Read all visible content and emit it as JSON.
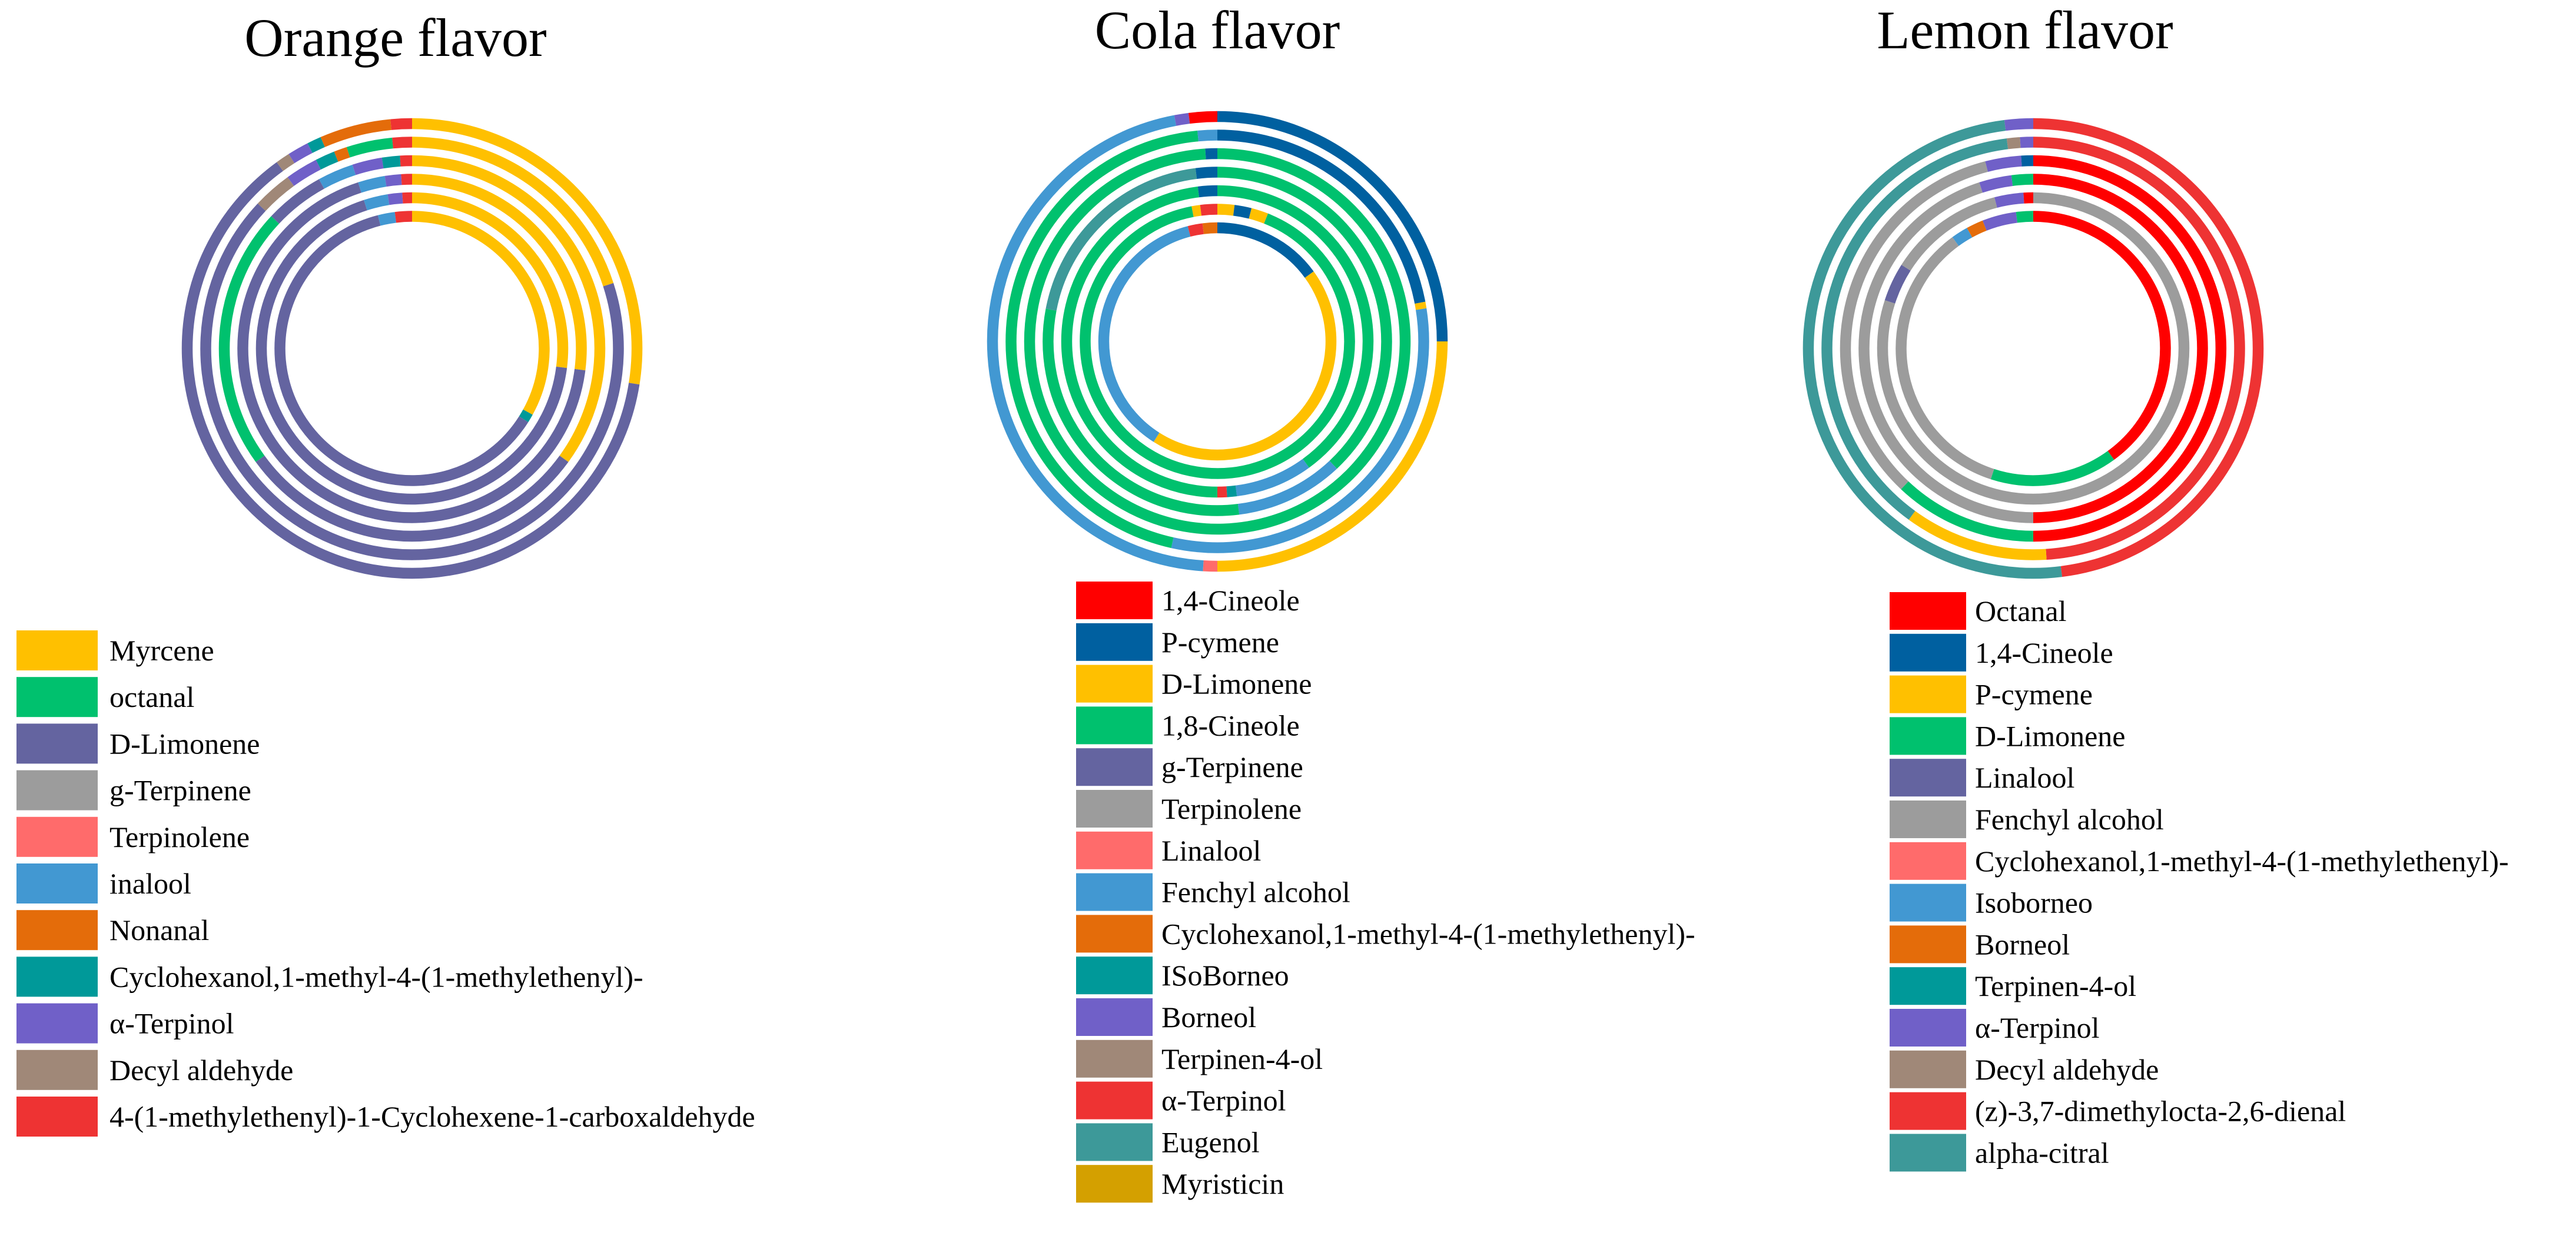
{
  "chart_data": [
    {
      "type": "multi-ring donut",
      "title": "Orange flavor",
      "ring_order": "outer-to-inner",
      "legend": [
        {
          "name": "Myrcene",
          "color": "#FFC000"
        },
        {
          "name": "octanal",
          "color": "#00C16E"
        },
        {
          "name": "D-Limonene",
          "color": "#6464A0"
        },
        {
          "name": "g-Terpinene",
          "color": "#9C9C9C"
        },
        {
          "name": "Terpinolene",
          "color": "#FF6B6B"
        },
        {
          "name": "inalool",
          "color": "#4298D2"
        },
        {
          "name": "Nonanal",
          "color": "#E46C0A"
        },
        {
          "name": "Cyclohexanol,1-methyl-4-(1-methylethenyl)-",
          "color": "#009999"
        },
        {
          "name": "α-Terpinol",
          "color": "#7060C8"
        },
        {
          "name": "Decyl aldehyde",
          "color": "#A08878"
        },
        {
          "name": "4-(1-methylethenyl)-1-Cyclohexene-1-carboxaldehyde",
          "color": "#EE3333"
        }
      ],
      "rings": [
        {
          "segments": [
            {
              "name": "Myrcene",
              "value": 27.5
            },
            {
              "name": "D-Limonene",
              "value": 62.5
            },
            {
              "name": "Decyl aldehyde",
              "value": 1
            },
            {
              "name": "α-Terpinol",
              "value": 1.5
            },
            {
              "name": "Cyclohexanol,1-methyl-4-(1-methylethenyl)-",
              "value": 1
            },
            {
              "name": "Nonanal",
              "value": 5
            },
            {
              "name": "4-(1-methylethenyl)-1-Cyclohexene-1-carboxaldehyde",
              "value": 1.5
            }
          ]
        },
        {
          "segments": [
            {
              "name": "Myrcene",
              "value": 20
            },
            {
              "name": "D-Limonene",
              "value": 67
            },
            {
              "name": "Decyl aldehyde",
              "value": 3
            },
            {
              "name": "α-Terpinol",
              "value": 2.5
            },
            {
              "name": "Cyclohexanol,1-methyl-4-(1-methylethenyl)-",
              "value": 1.5
            },
            {
              "name": "Nonanal",
              "value": 1
            },
            {
              "name": "octanal",
              "value": 3.5
            },
            {
              "name": "4-(1-methylethenyl)-1-Cyclohexene-1-carboxaldehyde",
              "value": 1.5
            }
          ]
        },
        {
          "segments": [
            {
              "name": "Myrcene",
              "value": 35
            },
            {
              "name": "D-Limonene",
              "value": 30
            },
            {
              "name": "octanal",
              "value": 22
            },
            {
              "name": "D-Limonene",
              "value": 5
            },
            {
              "name": "inalool",
              "value": 3
            },
            {
              "name": "α-Terpinol",
              "value": 2.5
            },
            {
              "name": "Cyclohexanol,1-methyl-4-(1-methylethenyl)-",
              "value": 1.5
            },
            {
              "name": "4-(1-methylethenyl)-1-Cyclohexene-1-carboxaldehyde",
              "value": 1
            }
          ]
        },
        {
          "segments": [
            {
              "name": "Myrcene",
              "value": 27
            },
            {
              "name": "D-Limonene",
              "value": 68
            },
            {
              "name": "inalool",
              "value": 2.5
            },
            {
              "name": "α-Terpinol",
              "value": 1.5
            },
            {
              "name": "4-(1-methylethenyl)-1-Cyclohexene-1-carboxaldehyde",
              "value": 1
            }
          ]
        },
        {
          "segments": [
            {
              "name": "Myrcene",
              "value": 27
            },
            {
              "name": "D-Limonene",
              "value": 68
            },
            {
              "name": "inalool",
              "value": 2.5
            },
            {
              "name": "α-Terpinol",
              "value": 1.5
            },
            {
              "name": "4-(1-methylethenyl)-1-Cyclohexene-1-carboxaldehyde",
              "value": 1
            }
          ]
        },
        {
          "segments": [
            {
              "name": "Myrcene",
              "value": 33
            },
            {
              "name": "Cyclohexanol,1-methyl-4-(1-methylethenyl)-",
              "value": 1
            },
            {
              "name": "D-Limonene",
              "value": 62
            },
            {
              "name": "inalool",
              "value": 2
            },
            {
              "name": "4-(1-methylethenyl)-1-Cyclohexene-1-carboxaldehyde",
              "value": 2
            }
          ]
        }
      ]
    },
    {
      "type": "multi-ring donut",
      "title": "Cola flavor",
      "ring_order": "outer-to-inner",
      "legend": [
        {
          "name": "1,4-Cineole",
          "color": "#FF0000"
        },
        {
          "name": "P-cymene",
          "color": "#0060A0"
        },
        {
          "name": "D-Limonene",
          "color": "#FFC000"
        },
        {
          "name": "1,8-Cineole",
          "color": "#00C16E"
        },
        {
          "name": "g-Terpinene",
          "color": "#6464A0"
        },
        {
          "name": "Terpinolene",
          "color": "#9C9C9C"
        },
        {
          "name": "Linalool",
          "color": "#FF6B6B"
        },
        {
          "name": "Fenchyl alcohol",
          "color": "#4298D2"
        },
        {
          "name": "Cyclohexanol,1-methyl-4-(1-methylethenyl)-",
          "color": "#E46C0A"
        },
        {
          "name": "ISoBorneo",
          "color": "#009999"
        },
        {
          "name": "Borneol",
          "color": "#7060C8"
        },
        {
          "name": "Terpinen-4-ol",
          "color": "#A08878"
        },
        {
          "name": "α-Terpinol",
          "color": "#EE3333"
        },
        {
          "name": "Eugenol",
          "color": "#3D9999"
        },
        {
          "name": "Myristicin",
          "color": "#D4A000"
        }
      ],
      "rings": [
        {
          "segments": [
            {
              "name": "P-cymene",
              "value": 25
            },
            {
              "name": "D-Limonene",
              "value": 25
            },
            {
              "name": "Linalool",
              "value": 1
            },
            {
              "name": "Fenchyl alcohol",
              "value": 46
            },
            {
              "name": "Borneol",
              "value": 1
            },
            {
              "name": "1,4-Cineole",
              "value": 2
            }
          ]
        },
        {
          "segments": [
            {
              "name": "P-cymene",
              "value": 22
            },
            {
              "name": "D-Limonene",
              "value": 0.5
            },
            {
              "name": "Fenchyl alcohol",
              "value": 31
            },
            {
              "name": "1,8-Cineole",
              "value": 45
            },
            {
              "name": "Fenchyl alcohol",
              "value": 1.5
            }
          ]
        },
        {
          "segments": [
            {
              "name": "1,8-Cineole",
              "value": 99
            },
            {
              "name": "P-cymene",
              "value": 1
            }
          ]
        },
        {
          "segments": [
            {
              "name": "1,8-Cineole",
              "value": 38
            },
            {
              "name": "Fenchyl alcohol",
              "value": 10
            },
            {
              "name": "1,8-Cineole",
              "value": 30
            },
            {
              "name": "Eugenol",
              "value": 20
            },
            {
              "name": "P-cymene",
              "value": 2
            }
          ]
        },
        {
          "segments": [
            {
              "name": "1,8-Cineole",
              "value": 40
            },
            {
              "name": "Fenchyl alcohol",
              "value": 8
            },
            {
              "name": "ISoBorneo",
              "value": 1
            },
            {
              "name": "α-Terpinol",
              "value": 1
            },
            {
              "name": "1,8-Cineole",
              "value": 48
            },
            {
              "name": "P-cymene",
              "value": 2
            }
          ]
        },
        {
          "segments": [
            {
              "name": "D-Limonene",
              "value": 2
            },
            {
              "name": "P-cymene",
              "value": 2
            },
            {
              "name": "D-Limonene",
              "value": 2
            },
            {
              "name": "1,8-Cineole",
              "value": 91
            },
            {
              "name": "D-Limonene",
              "value": 1
            },
            {
              "name": "α-Terpinol",
              "value": 2
            }
          ]
        },
        {
          "segments": [
            {
              "name": "P-cymene",
              "value": 15
            },
            {
              "name": "D-Limonene",
              "value": 44
            },
            {
              "name": "Fenchyl alcohol",
              "value": 37
            },
            {
              "name": "α-Terpinol",
              "value": 2
            },
            {
              "name": "Cyclohexanol,1-methyl-4-(1-methylethenyl)-",
              "value": 2
            }
          ]
        }
      ]
    },
    {
      "type": "multi-ring donut",
      "title": "Lemon flavor",
      "ring_order": "outer-to-inner",
      "legend": [
        {
          "name": "Octanal",
          "color": "#FF0000"
        },
        {
          "name": "1,4-Cineole",
          "color": "#0060A0"
        },
        {
          "name": "P-cymene",
          "color": "#FFC000"
        },
        {
          "name": "D-Limonene",
          "color": "#00C16E"
        },
        {
          "name": "Linalool",
          "color": "#6464A0"
        },
        {
          "name": "Fenchyl alcohol",
          "color": "#9C9C9C"
        },
        {
          "name": "Cyclohexanol,1-methyl-4-(1-methylethenyl)-",
          "color": "#FF6B6B"
        },
        {
          "name": "Isoborneo",
          "color": "#4298D2"
        },
        {
          "name": "Borneol",
          "color": "#E46C0A"
        },
        {
          "name": "Terpinen-4-ol",
          "color": "#009999"
        },
        {
          "name": "α-Terpinol",
          "color": "#7060C8"
        },
        {
          "name": "Decyl aldehyde",
          "color": "#A08878"
        },
        {
          "name": "(z)-3,7-dimethylocta-2,6-dienal",
          "color": "#EE3333"
        },
        {
          "name": "alpha-citral",
          "color": "#3D9999"
        }
      ],
      "rings": [
        {
          "segments": [
            {
              "name": "(z)-3,7-dimethylocta-2,6-dienal",
              "value": 48
            },
            {
              "name": "alpha-citral",
              "value": 50
            },
            {
              "name": "α-Terpinol",
              "value": 2
            }
          ]
        },
        {
          "segments": [
            {
              "name": "(z)-3,7-dimethylocta-2,6-dienal",
              "value": 49
            },
            {
              "name": "P-cymene",
              "value": 11
            },
            {
              "name": "alpha-citral",
              "value": 38
            },
            {
              "name": "Decyl aldehyde",
              "value": 1
            },
            {
              "name": "α-Terpinol",
              "value": 1
            }
          ]
        },
        {
          "segments": [
            {
              "name": "Octanal",
              "value": 50
            },
            {
              "name": "D-Limonene",
              "value": 12
            },
            {
              "name": "Fenchyl alcohol",
              "value": 34
            },
            {
              "name": "α-Terpinol",
              "value": 3
            },
            {
              "name": "1,4-Cineole",
              "value": 1
            }
          ]
        },
        {
          "segments": [
            {
              "name": "Octanal",
              "value": 50
            },
            {
              "name": "Fenchyl alcohol",
              "value": 45
            },
            {
              "name": "α-Terpinol",
              "value": 3
            },
            {
              "name": "D-Limonene",
              "value": 2
            }
          ]
        },
        {
          "segments": [
            {
              "name": "Fenchyl alcohol",
              "value": 80
            },
            {
              "name": "Linalool",
              "value": 4
            },
            {
              "name": "Fenchyl alcohol",
              "value": 12
            },
            {
              "name": "α-Terpinol",
              "value": 3
            },
            {
              "name": "Octanal",
              "value": 1
            }
          ]
        },
        {
          "segments": [
            {
              "name": "Octanal",
              "value": 40
            },
            {
              "name": "D-Limonene",
              "value": 15
            },
            {
              "name": "Fenchyl alcohol",
              "value": 35
            },
            {
              "name": "Isoborneo",
              "value": 2
            },
            {
              "name": "Borneol",
              "value": 2
            },
            {
              "name": "α-Terpinol",
              "value": 4
            },
            {
              "name": "D-Limonene",
              "value": 2
            }
          ]
        }
      ]
    }
  ]
}
